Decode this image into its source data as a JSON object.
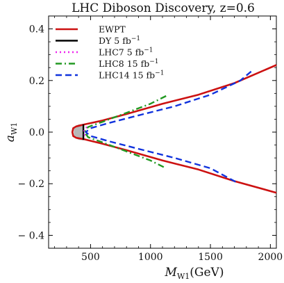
{
  "chart_data": {
    "type": "line",
    "title": "LHC Diboson Discovery, z=0.6",
    "xlabel": "M_W1 (GeV)",
    "xlabel_main": "M",
    "xlabel_sub": "W1",
    "xlabel_unit": "(GeV)",
    "ylabel": "a_W1",
    "ylabel_main": "a",
    "ylabel_sub": "W1",
    "xlim": [
      150,
      2050
    ],
    "ylim": [
      -0.45,
      0.45
    ],
    "xticks": [
      500,
      1000,
      1500,
      2000
    ],
    "xtick_labels": [
      "500",
      "1000",
      "1500",
      "2000"
    ],
    "yticks": [
      -0.4,
      -0.2,
      0.0,
      0.2,
      0.4
    ],
    "ytick_labels": [
      "− 0.4",
      "− 0.2",
      "0.0",
      "0.2",
      "0.4"
    ],
    "grid": false,
    "legend_position": "top-left",
    "shaded_region": {
      "color": "#b8b8b8",
      "points": [
        [
          360,
          0.02
        ],
        [
          400,
          0.03
        ],
        [
          440,
          0.032
        ],
        [
          440,
          -0.032
        ],
        [
          400,
          -0.03
        ],
        [
          360,
          -0.02
        ]
      ]
    },
    "series": [
      {
        "name": "EWPT",
        "color": "#cc1111",
        "dash": "solid",
        "points": [
          [
            2050,
            0.26
          ],
          [
            1700,
            0.19
          ],
          [
            1400,
            0.145
          ],
          [
            1100,
            0.11
          ],
          [
            800,
            0.07
          ],
          [
            600,
            0.045
          ],
          [
            450,
            0.03
          ],
          [
            380,
            0.022
          ],
          [
            355,
            0.015
          ],
          [
            348,
            0.0
          ],
          [
            355,
            -0.015
          ],
          [
            380,
            -0.022
          ],
          [
            450,
            -0.028
          ],
          [
            600,
            -0.045
          ],
          [
            800,
            -0.07
          ],
          [
            1100,
            -0.11
          ],
          [
            1400,
            -0.145
          ],
          [
            1700,
            -0.19
          ],
          [
            2050,
            -0.235
          ]
        ]
      },
      {
        "name": "DY 5 fb",
        "label_main": "DY 5",
        "label_unit": "fb",
        "label_exp": "−1",
        "color": "#000000",
        "dash": "solid",
        "points": [
          [
            440,
            0.03
          ],
          [
            440,
            -0.03
          ]
        ]
      },
      {
        "name": "LHC7 5 fb",
        "label_main": "LHC7 5",
        "label_unit": "fb",
        "label_exp": "−1",
        "color": "#ee22ee",
        "dash": "dot",
        "points": [
          [
            470,
            0.02
          ],
          [
            450,
            0.01
          ],
          [
            445,
            0.0
          ],
          [
            450,
            -0.01
          ],
          [
            470,
            -0.02
          ]
        ]
      },
      {
        "name": "LHC8 15 fb",
        "label_main": "LHC8 15",
        "label_unit": "fb",
        "label_exp": "−1",
        "color": "#229922",
        "dash": "dashdot",
        "points": [
          [
            1130,
            0.14
          ],
          [
            1000,
            0.11
          ],
          [
            800,
            0.075
          ],
          [
            600,
            0.04
          ],
          [
            480,
            0.02
          ],
          [
            450,
            0.0
          ],
          [
            480,
            -0.02
          ],
          [
            600,
            -0.04
          ],
          [
            800,
            -0.075
          ],
          [
            1000,
            -0.11
          ],
          [
            1130,
            -0.14
          ]
        ]
      },
      {
        "name": "LHC14 15 fb",
        "label_main": "LHC14 15",
        "label_unit": "fb",
        "label_exp": "−1",
        "color": "#1133dd",
        "dash": "dashed",
        "points": [
          [
            1840,
            0.235
          ],
          [
            1750,
            0.2
          ],
          [
            1500,
            0.145
          ],
          [
            1200,
            0.1
          ],
          [
            900,
            0.065
          ],
          [
            650,
            0.035
          ],
          [
            500,
            0.015
          ],
          [
            460,
            0.0
          ],
          [
            500,
            -0.015
          ],
          [
            650,
            -0.035
          ],
          [
            900,
            -0.065
          ],
          [
            1200,
            -0.1
          ],
          [
            1500,
            -0.14
          ],
          [
            1720,
            -0.195
          ]
        ]
      }
    ]
  }
}
